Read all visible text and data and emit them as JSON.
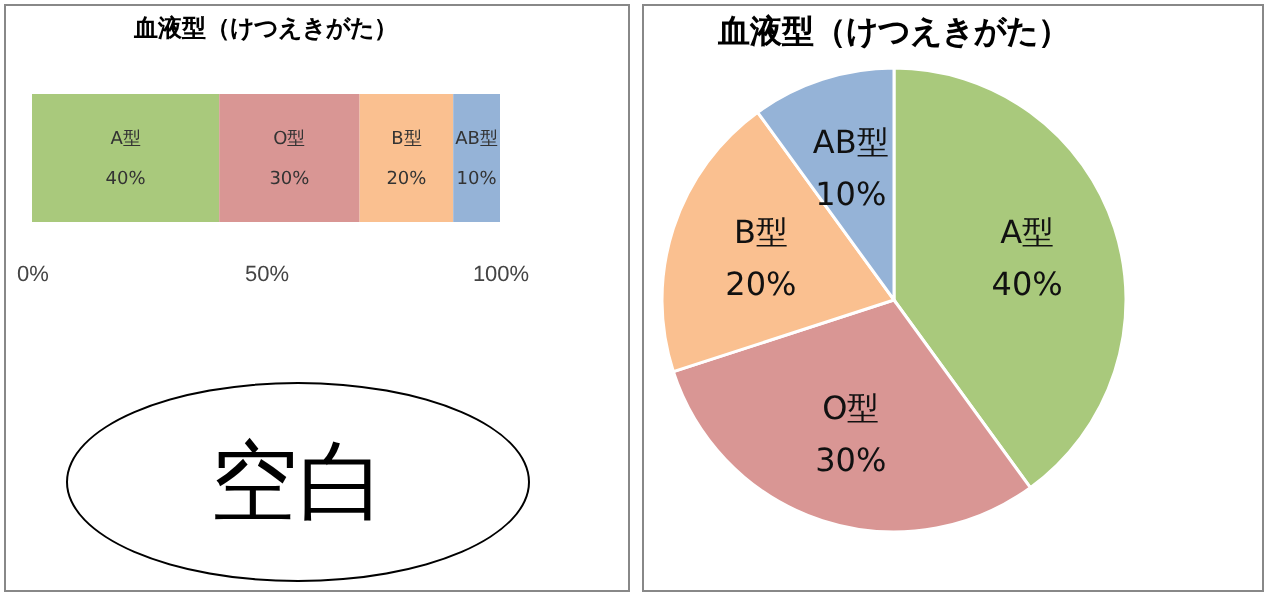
{
  "chart_data": [
    {
      "type": "bar",
      "title": "血液型（けつえきがた）",
      "orientation": "horizontal",
      "stacked": true,
      "categories": [
        null
      ],
      "xlim": [
        0,
        1
      ],
      "xticks": [
        {
          "value": 0,
          "label": "0%"
        },
        {
          "value": 0.5,
          "label": "50%"
        },
        {
          "value": 1,
          "label": "100%"
        }
      ],
      "series": [
        {
          "name": "A型",
          "color": "#a9c97c",
          "values": [
            0.4
          ],
          "value_labels": [
            "40%"
          ]
        },
        {
          "name": "O型",
          "color": "#d99694",
          "values": [
            0.3
          ],
          "value_labels": [
            "30%"
          ]
        },
        {
          "name": "B型",
          "color": "#fac090",
          "values": [
            0.2
          ],
          "value_labels": [
            "20%"
          ]
        },
        {
          "name": "AB型",
          "color": "#95b3d7",
          "values": [
            0.1
          ],
          "value_labels": [
            "10%"
          ]
        }
      ],
      "annotations": [
        "空白"
      ]
    },
    {
      "type": "pie",
      "title": "血液型（けつえきがた）",
      "categories": [
        "A型",
        "O型",
        "B型",
        "AB型"
      ],
      "values": [
        40,
        30,
        20,
        10
      ],
      "value_labels": [
        "40%",
        "30%",
        "20%",
        "10%"
      ],
      "colors": [
        "#a9c97c",
        "#d99694",
        "#fac090",
        "#95b3d7"
      ]
    }
  ]
}
